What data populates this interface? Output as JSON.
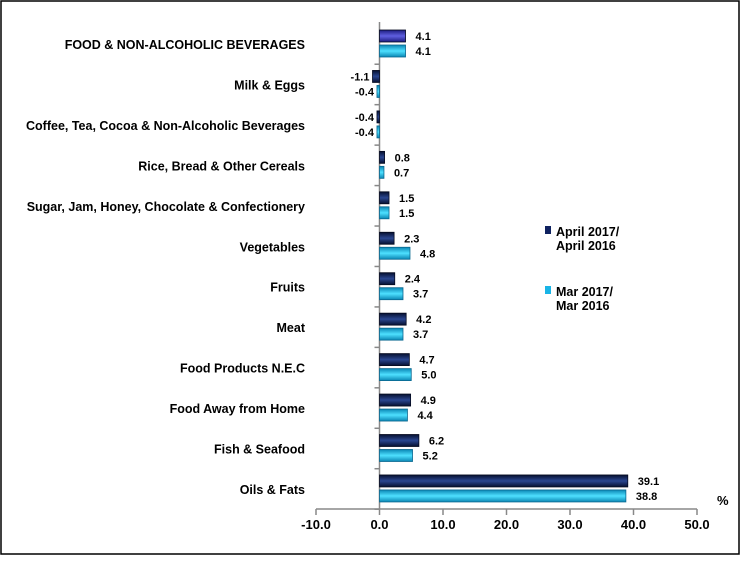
{
  "chart_data": {
    "type": "bar",
    "orientation": "horizontal",
    "categories": [
      "FOOD & NON-ALCOHOLIC BEVERAGES",
      "Milk & Eggs",
      "Coffee, Tea, Cocoa & Non-Alcoholic Beverages",
      "Rice, Bread & Other Cereals",
      "Sugar, Jam, Honey, Chocolate & Confectionery",
      "Vegetables",
      "Fruits",
      "Meat",
      "Food Products N.E.C",
      "Food Away from Home",
      "Fish & Seafood",
      "Oils & Fats"
    ],
    "series": [
      {
        "name": [
          "April 2017/",
          "April 2016"
        ],
        "color": "#0f2260",
        "values": [
          4.1,
          -1.1,
          -0.4,
          0.8,
          1.5,
          2.3,
          2.4,
          4.2,
          4.7,
          4.9,
          6.2,
          39.1
        ],
        "labels": [
          "4.1",
          "-1.1",
          "-0.4",
          "0.8",
          "1.5",
          "2.3",
          "2.4",
          "4.2",
          "4.7",
          "4.9",
          "6.2",
          "39.1"
        ]
      },
      {
        "name": [
          "Mar 2017/",
          "Mar 2016"
        ],
        "color": "#19b4e6",
        "values": [
          4.1,
          -0.4,
          -0.4,
          0.7,
          1.5,
          4.8,
          3.7,
          3.7,
          5.0,
          4.4,
          5.2,
          38.8
        ],
        "labels": [
          "4.1",
          "-0.4",
          "-0.4",
          "0.7",
          "1.5",
          "4.8",
          "3.7",
          "3.7",
          "5.0",
          "4.4",
          "5.2",
          "38.8"
        ]
      }
    ],
    "highlight_color": "#3434b4",
    "xlabel": "%",
    "xlim": [
      -10,
      50
    ],
    "xticks": [
      "-10.0",
      "0.0",
      "10.0",
      "20.0",
      "30.0",
      "40.0",
      "50.0"
    ],
    "grid": false,
    "legend": "right"
  }
}
